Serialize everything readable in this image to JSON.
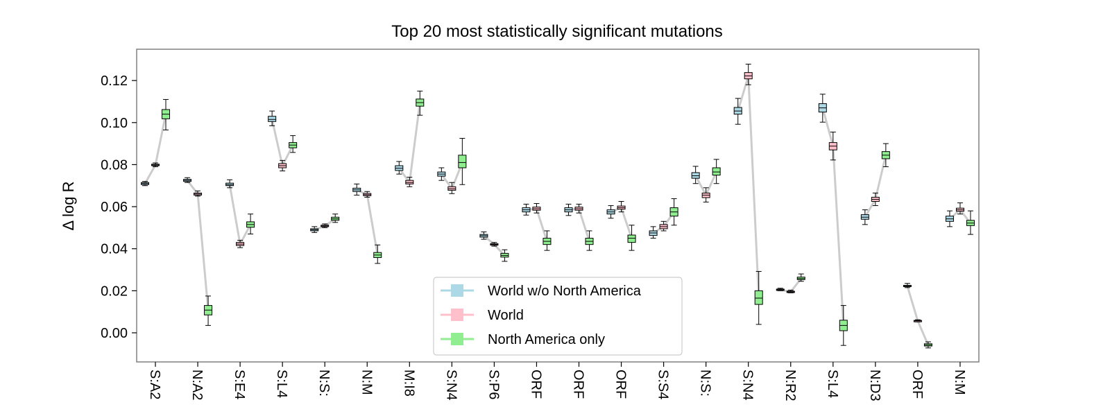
{
  "chart_data": {
    "type": "box",
    "title": "Top 20 most statistically significant mutations",
    "xlabel": "",
    "ylabel": "Δ log R",
    "ylim": [
      -0.014,
      0.134
    ],
    "yticks": [
      "0.00",
      "0.02",
      "0.04",
      "0.06",
      "0.08",
      "0.10",
      "0.12"
    ],
    "grid": false,
    "legend_position": "lower-center",
    "categories": [
      "S:A2",
      "N:A2",
      "S:E4",
      "S:L4",
      "N:S:",
      "N:M",
      "M:I8",
      "S:N4",
      "S:P6",
      "ORF",
      "ORF",
      "ORF",
      "S:S4",
      "N:S:",
      "S:N4",
      "N:R2",
      "S:L4",
      "N:D3",
      "ORF",
      "N:M"
    ],
    "series": [
      {
        "name": "World w/o North America",
        "color": "#add8e6",
        "boxes": [
          [
            0.07,
            0.0705,
            0.071,
            0.0715,
            0.072
          ],
          [
            0.0715,
            0.072,
            0.0725,
            0.073,
            0.0738
          ],
          [
            0.069,
            0.07,
            0.0705,
            0.0712,
            0.0728
          ],
          [
            0.0985,
            0.1005,
            0.1015,
            0.103,
            0.1055
          ],
          [
            0.0477,
            0.0485,
            0.049,
            0.0495,
            0.0505
          ],
          [
            0.0655,
            0.0672,
            0.068,
            0.0688,
            0.0708
          ],
          [
            0.0755,
            0.0772,
            0.0783,
            0.0795,
            0.0815
          ],
          [
            0.0725,
            0.0745,
            0.0755,
            0.0765,
            0.0785
          ],
          [
            0.0445,
            0.0455,
            0.0462,
            0.0468,
            0.048
          ],
          [
            0.056,
            0.0575,
            0.0585,
            0.0595,
            0.0612
          ],
          [
            0.0558,
            0.0575,
            0.0585,
            0.0595,
            0.0612
          ],
          [
            0.0545,
            0.0565,
            0.0575,
            0.0585,
            0.0605
          ],
          [
            0.045,
            0.0463,
            0.0475,
            0.0485,
            0.0505
          ],
          [
            0.071,
            0.0735,
            0.0747,
            0.0762,
            0.0792
          ],
          [
            0.0992,
            0.104,
            0.1055,
            0.1072,
            0.1115
          ],
          [
            0.02,
            0.0203,
            0.0205,
            0.0208,
            0.0212
          ],
          [
            0.1002,
            0.105,
            0.107,
            0.109,
            0.1135
          ],
          [
            0.0515,
            0.054,
            0.055,
            0.0562,
            0.0585
          ],
          [
            0.0215,
            0.022,
            0.0222,
            0.0226,
            0.0235
          ],
          [
            0.0505,
            0.053,
            0.0542,
            0.0555,
            0.058
          ]
        ]
      },
      {
        "name": "World",
        "color": "#ffc0cb",
        "boxes": [
          [
            0.079,
            0.0795,
            0.0798,
            0.0802,
            0.0808
          ],
          [
            0.065,
            0.0655,
            0.066,
            0.0665,
            0.0675
          ],
          [
            0.0405,
            0.0415,
            0.0422,
            0.043,
            0.044
          ],
          [
            0.077,
            0.0785,
            0.0795,
            0.0805,
            0.082
          ],
          [
            0.05,
            0.0505,
            0.0508,
            0.0512,
            0.0518
          ],
          [
            0.0645,
            0.0652,
            0.0657,
            0.0663,
            0.0672
          ],
          [
            0.0695,
            0.0708,
            0.0715,
            0.0725,
            0.074
          ],
          [
            0.0662,
            0.0678,
            0.0685,
            0.0695,
            0.0715
          ],
          [
            0.0412,
            0.0417,
            0.042,
            0.0424,
            0.043
          ],
          [
            0.057,
            0.0583,
            0.059,
            0.0598,
            0.0615
          ],
          [
            0.057,
            0.0583,
            0.059,
            0.0598,
            0.0612
          ],
          [
            0.0575,
            0.0588,
            0.0595,
            0.0603,
            0.0625
          ],
          [
            0.0485,
            0.0495,
            0.0505,
            0.0515,
            0.053
          ],
          [
            0.0622,
            0.0643,
            0.0655,
            0.0665,
            0.069
          ],
          [
            0.118,
            0.1208,
            0.1222,
            0.1238,
            0.1278
          ],
          [
            0.019,
            0.0193,
            0.0195,
            0.0198,
            0.0203
          ],
          [
            0.0822,
            0.087,
            0.0888,
            0.0905,
            0.0955
          ],
          [
            0.0605,
            0.0625,
            0.0635,
            0.0645,
            0.0665
          ],
          [
            0.0052,
            0.0055,
            0.0057,
            0.0059,
            0.0062
          ],
          [
            0.0565,
            0.0578,
            0.0585,
            0.0593,
            0.0618
          ]
        ]
      },
      {
        "name": "North America only",
        "color": "#90ee90",
        "boxes": [
          [
            0.0965,
            0.1018,
            0.104,
            0.1062,
            0.111
          ],
          [
            0.0035,
            0.0085,
            0.0108,
            0.013,
            0.0175
          ],
          [
            0.047,
            0.0502,
            0.0515,
            0.0528,
            0.0565
          ],
          [
            0.0858,
            0.088,
            0.0893,
            0.0905,
            0.0938
          ],
          [
            0.0525,
            0.0535,
            0.0542,
            0.055,
            0.0565
          ],
          [
            0.033,
            0.0358,
            0.037,
            0.0382,
            0.0418
          ],
          [
            0.1035,
            0.1078,
            0.1095,
            0.1112,
            0.115
          ],
          [
            0.0705,
            0.0785,
            0.081,
            0.0845,
            0.0925
          ],
          [
            0.034,
            0.036,
            0.0368,
            0.0378,
            0.0395
          ],
          [
            0.0392,
            0.042,
            0.0435,
            0.045,
            0.0485
          ],
          [
            0.0392,
            0.042,
            0.0435,
            0.045,
            0.0485
          ],
          [
            0.0392,
            0.043,
            0.045,
            0.0465,
            0.0512
          ],
          [
            0.0512,
            0.0555,
            0.0575,
            0.0595,
            0.0638
          ],
          [
            0.071,
            0.075,
            0.0765,
            0.0785,
            0.0825
          ],
          [
            0.004,
            0.0135,
            0.0165,
            0.02,
            0.0292
          ],
          [
            0.0245,
            0.0253,
            0.0258,
            0.0265,
            0.028
          ],
          [
            -0.006,
            0.001,
            0.0035,
            0.006,
            0.013
          ],
          [
            0.079,
            0.0828,
            0.0845,
            0.0862,
            0.09
          ],
          [
            -0.0072,
            -0.0063,
            -0.0058,
            -0.0052,
            -0.0043
          ],
          [
            0.0468,
            0.051,
            0.0522,
            0.0535,
            0.058
          ]
        ]
      }
    ]
  }
}
